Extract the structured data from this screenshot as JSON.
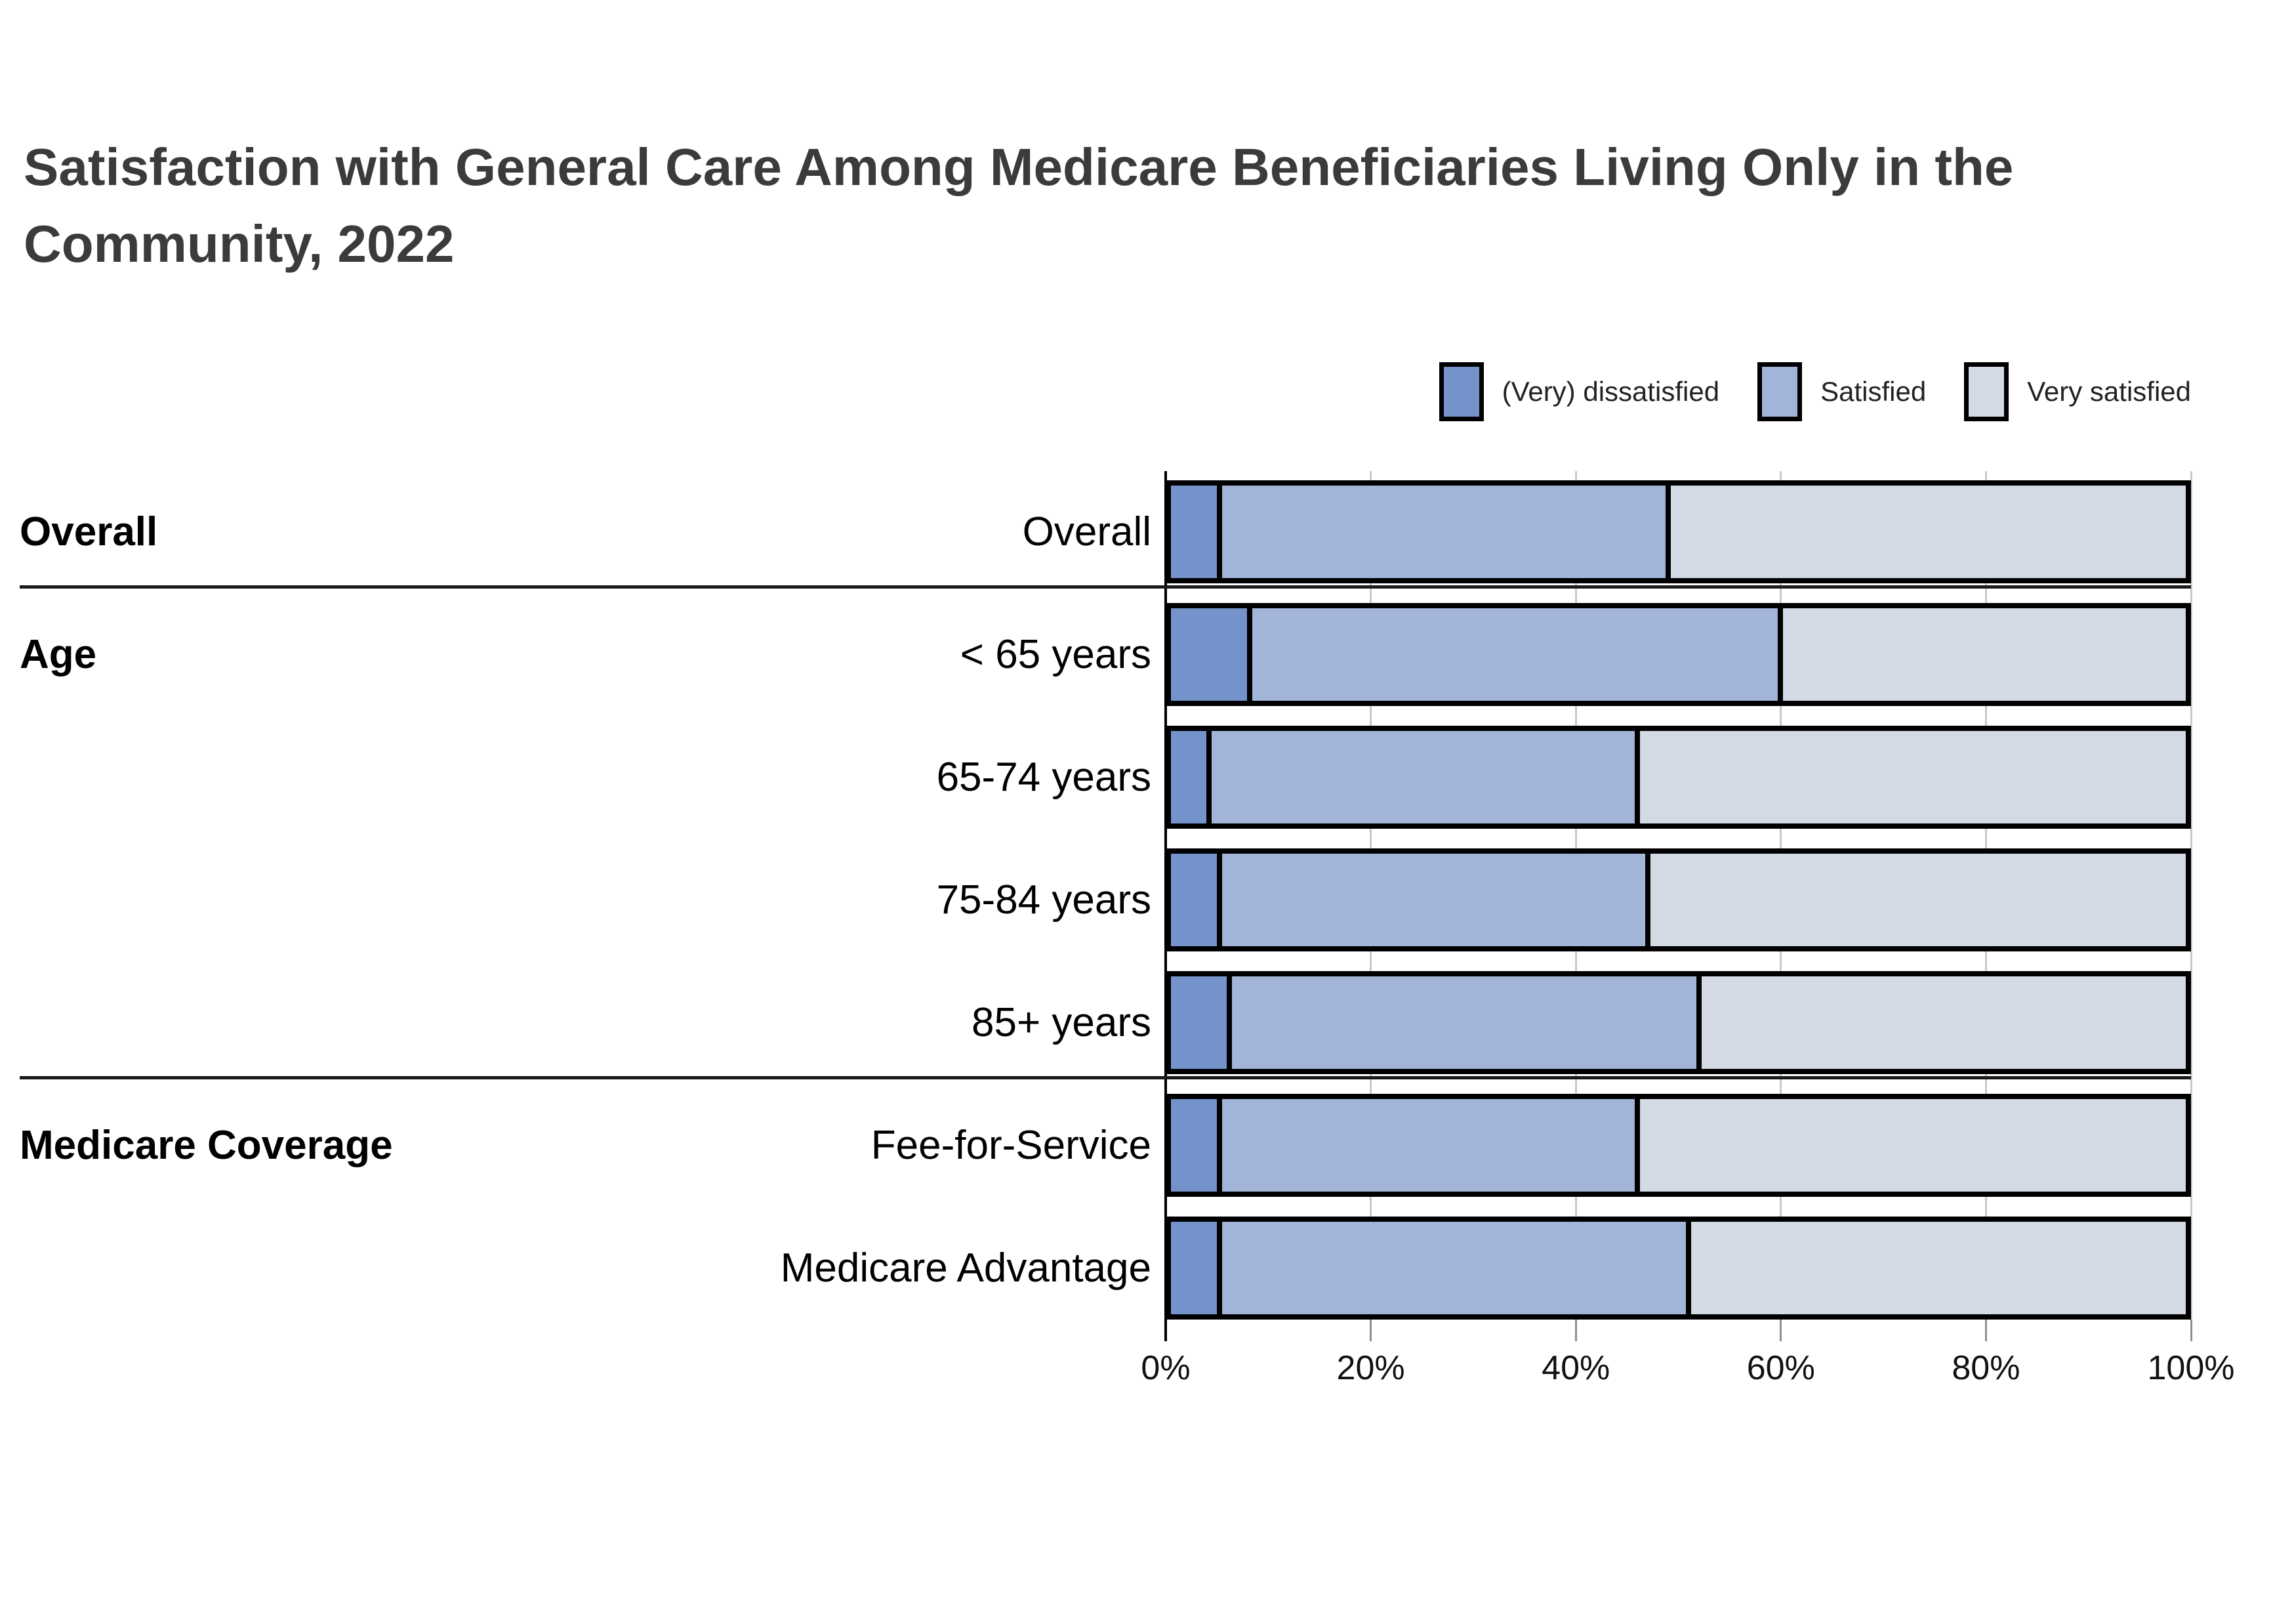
{
  "title": "Satisfaction with General Care Among Medicare Beneficiaries Living Only in the Community, 2022",
  "legend": {
    "items": [
      {
        "label": "(Very) dissatisfied",
        "color": "#7493cb"
      },
      {
        "label": "Satisfied",
        "color": "#a2b5d9"
      },
      {
        "label": "Very satisfied",
        "color": "#d4dae3"
      }
    ]
  },
  "chart_data": {
    "type": "bar",
    "orientation": "horizontal",
    "stacked": true,
    "unit": "percent",
    "title": "Satisfaction with General Care Among Medicare Beneficiaries Living Only in the Community, 2022",
    "series_names": [
      "(Very) dissatisfied",
      "Satisfied",
      "Very satisfied"
    ],
    "series_colors": [
      "#7493cb",
      "#a2b5d9",
      "#d4dae3"
    ],
    "x_ticks": [
      "0%",
      "20%",
      "40%",
      "60%",
      "80%",
      "100%"
    ],
    "xlim": [
      0,
      100
    ],
    "gridlines": true,
    "legend_position": "top-right",
    "groups": [
      {
        "label": "Overall",
        "rows": [
          {
            "label": "Overall",
            "values": [
              5,
              44,
              51
            ]
          }
        ]
      },
      {
        "label": "Age",
        "rows": [
          {
            "label": "< 65 years",
            "values": [
              8,
              52,
              40
            ]
          },
          {
            "label": "65-74 years",
            "values": [
              4,
              42,
              54
            ]
          },
          {
            "label": "75-84 years",
            "values": [
              5,
              42,
              53
            ]
          },
          {
            "label": "85+ years",
            "values": [
              6,
              46,
              48
            ]
          }
        ]
      },
      {
        "label": "Medicare Coverage",
        "rows": [
          {
            "label": "Fee-for-Service",
            "values": [
              5,
              41,
              54
            ]
          },
          {
            "label": "Medicare Advantage",
            "values": [
              5,
              46,
              49
            ]
          }
        ]
      }
    ]
  }
}
